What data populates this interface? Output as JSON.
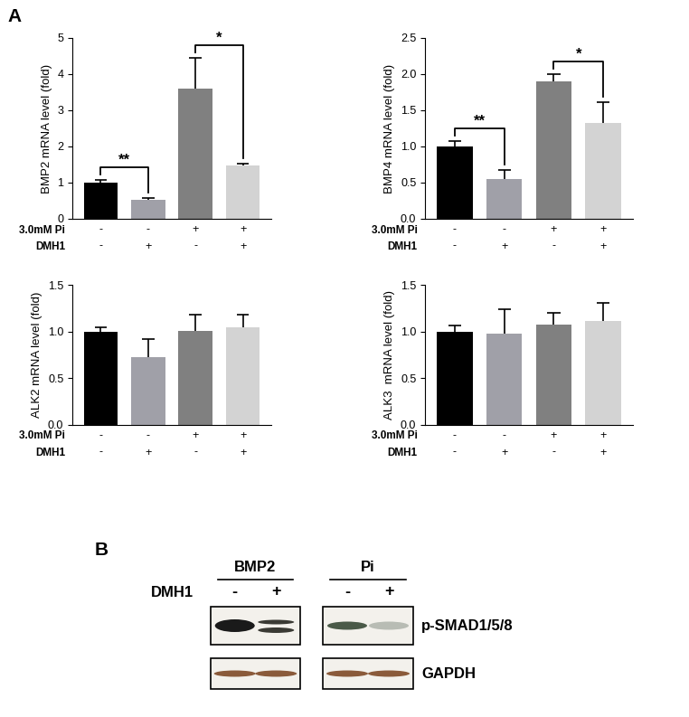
{
  "panel_labels": [
    "A",
    "B"
  ],
  "chart_data": [
    {
      "type": "bar",
      "y_label": "BMP2 mRNA level (fold)",
      "categories": [
        null,
        null,
        null,
        null
      ],
      "conditions": [
        {
          "name": "3.0mM Pi",
          "values": [
            "-",
            "-",
            "+",
            "+"
          ]
        },
        {
          "name": "DMH1",
          "values": [
            "-",
            "+",
            "-",
            "+"
          ]
        }
      ],
      "values": [
        1.0,
        0.53,
        3.6,
        1.47
      ],
      "errors": [
        0.07,
        0.05,
        0.85,
        0.05
      ],
      "colors": [
        "#000000",
        "#a0a0a8",
        "#808080",
        "#d3d3d3"
      ],
      "ylim": [
        0,
        5
      ],
      "yticks": [
        0,
        1,
        2,
        3,
        4,
        5
      ],
      "significance": [
        {
          "from": 0,
          "to": 1,
          "label": "**"
        },
        {
          "from": 2,
          "to": 3,
          "label": "*"
        }
      ]
    },
    {
      "type": "bar",
      "y_label": "BMP4 mRNA level (fold)",
      "categories": [
        null,
        null,
        null,
        null
      ],
      "conditions": [
        {
          "name": "3.0mM Pi",
          "values": [
            "-",
            "-",
            "+",
            "+"
          ]
        },
        {
          "name": "DMH1",
          "values": [
            "-",
            "+",
            "-",
            "+"
          ]
        }
      ],
      "values": [
        1.0,
        0.55,
        1.9,
        1.33
      ],
      "errors": [
        0.08,
        0.13,
        0.1,
        0.28
      ],
      "colors": [
        "#000000",
        "#a0a0a8",
        "#808080",
        "#d3d3d3"
      ],
      "ylim": [
        0,
        2.5
      ],
      "yticks": [
        {
          "value": 0,
          "label": "0.0"
        },
        0.5,
        {
          "value": 1,
          "label": "1.0"
        },
        1.5,
        {
          "value": 2,
          "label": "2.0"
        },
        2.5
      ],
      "significance": [
        {
          "from": 0,
          "to": 1,
          "label": "**"
        },
        {
          "from": 2,
          "to": 3,
          "label": "*"
        }
      ]
    },
    {
      "type": "bar",
      "y_label": "ALK2 mRNA level (fold)",
      "categories": [
        null,
        null,
        null,
        null
      ],
      "conditions": [
        {
          "name": "3.0mM Pi",
          "values": [
            "-",
            "-",
            "+",
            "+"
          ]
        },
        {
          "name": "DMH1",
          "values": [
            "-",
            "+",
            "-",
            "+"
          ]
        }
      ],
      "values": [
        1.0,
        0.73,
        1.01,
        1.05
      ],
      "errors": [
        0.05,
        0.19,
        0.17,
        0.13
      ],
      "colors": [
        "#000000",
        "#a0a0a8",
        "#808080",
        "#d3d3d3"
      ],
      "ylim": [
        0,
        1.5
      ],
      "yticks": [
        {
          "value": 0,
          "label": "0.0"
        },
        0.5,
        {
          "value": 1,
          "label": "1.0"
        },
        1.5
      ],
      "significance": []
    },
    {
      "type": "bar",
      "y_label": "ALK3  mRNA level (fold)",
      "categories": [
        null,
        null,
        null,
        null
      ],
      "conditions": [
        {
          "name": "3.0mM Pi",
          "values": [
            "-",
            "-",
            "+",
            "+"
          ]
        },
        {
          "name": "DMH1",
          "values": [
            "-",
            "+",
            "-",
            "+"
          ]
        }
      ],
      "values": [
        1.0,
        0.98,
        1.07,
        1.11
      ],
      "errors": [
        0.06,
        0.26,
        0.13,
        0.2
      ],
      "colors": [
        "#000000",
        "#a0a0a8",
        "#808080",
        "#d3d3d3"
      ],
      "ylim": [
        0,
        1.5
      ],
      "yticks": [
        {
          "value": 0,
          "label": "0.0"
        },
        0.5,
        {
          "value": 1,
          "label": "1.0"
        },
        1.5
      ],
      "significance": []
    }
  ],
  "blot": {
    "treatment": "DMH1",
    "lane_groups": [
      {
        "label": "BMP2",
        "lanes": [
          "-",
          "+"
        ]
      },
      {
        "label": "Pi",
        "lanes": [
          "-",
          "+"
        ]
      }
    ],
    "rows": [
      "p-SMAD1/5/8",
      "GAPDH"
    ]
  }
}
